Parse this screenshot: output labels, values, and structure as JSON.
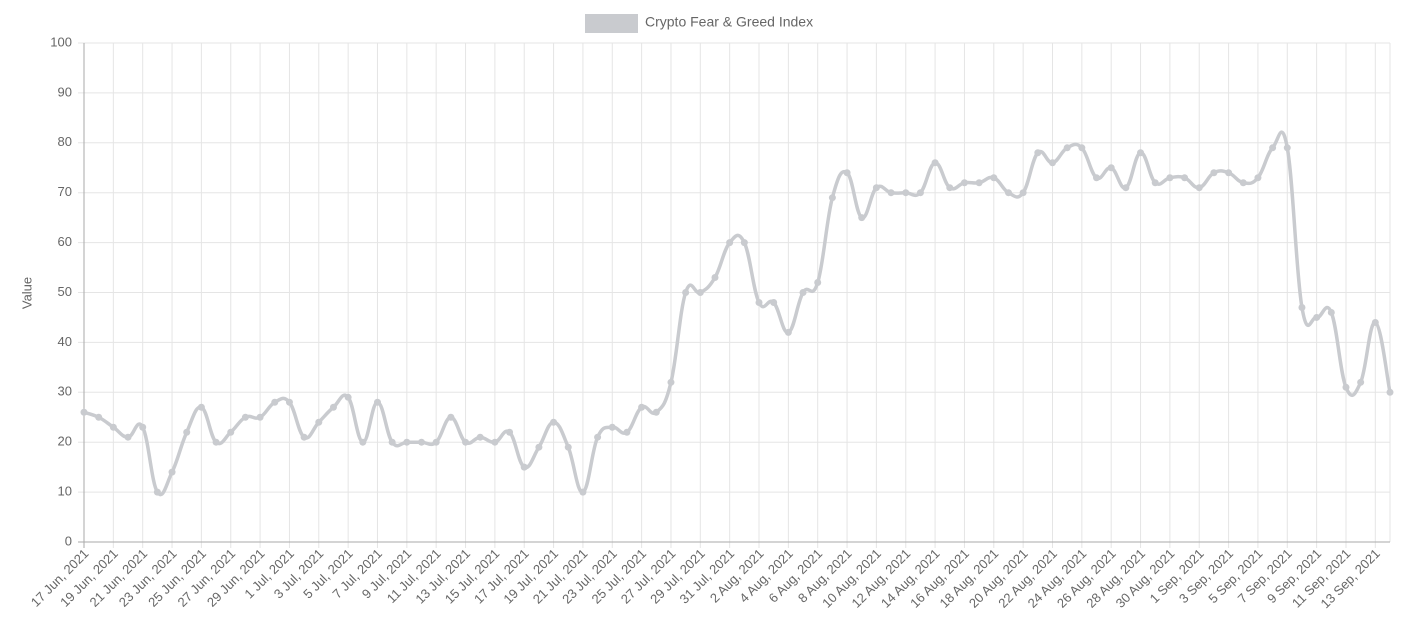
{
  "chart_data": {
    "type": "line",
    "series": [
      {
        "name": "Crypto Fear & Greed Index",
        "color": "#c9cbcf",
        "values": [
          26,
          25,
          23,
          21,
          23,
          10,
          14,
          22,
          27,
          20,
          22,
          25,
          25,
          28,
          28,
          21,
          24,
          27,
          29,
          20,
          28,
          20,
          20,
          20,
          20,
          25,
          20,
          21,
          20,
          22,
          15,
          19,
          24,
          19,
          10,
          21,
          23,
          22,
          27,
          26,
          32,
          50,
          50,
          53,
          60,
          60,
          48,
          48,
          42,
          50,
          52,
          69,
          74,
          65,
          71,
          70,
          70,
          70,
          76,
          71,
          72,
          72,
          73,
          70,
          70,
          78,
          76,
          79,
          79,
          73,
          75,
          71,
          78,
          72,
          73,
          73,
          71,
          74,
          74,
          72,
          73,
          79,
          79,
          47,
          45,
          46,
          31,
          32,
          44,
          30
        ]
      }
    ],
    "categories": [
      "17 Jun, 2021",
      null,
      "19 Jun, 2021",
      null,
      "21 Jun, 2021",
      null,
      "23 Jun, 2021",
      null,
      "25 Jun, 2021",
      null,
      "27 Jun, 2021",
      null,
      "29 Jun, 2021",
      null,
      "1 Jul, 2021",
      null,
      "3 Jul, 2021",
      null,
      "5 Jul, 2021",
      null,
      "7 Jul, 2021",
      null,
      "9 Jul, 2021",
      null,
      "11 Jul, 2021",
      null,
      "13 Jul, 2021",
      null,
      "15 Jul, 2021",
      null,
      "17 Jul, 2021",
      null,
      "19 Jul, 2021",
      null,
      "21 Jul, 2021",
      null,
      "23 Jul, 2021",
      null,
      "25 Jul, 2021",
      null,
      "27 Jul, 2021",
      null,
      "29 Jul, 2021",
      null,
      "31 Jul, 2021",
      null,
      "2 Aug, 2021",
      null,
      "4 Aug, 2021",
      null,
      "6 Aug, 2021",
      null,
      "8 Aug, 2021",
      null,
      "10 Aug, 2021",
      null,
      "12 Aug, 2021",
      null,
      "14 Aug, 2021",
      null,
      "16 Aug, 2021",
      null,
      "18 Aug, 2021",
      null,
      "20 Aug, 2021",
      null,
      "22 Aug, 2021",
      null,
      "24 Aug, 2021",
      null,
      "26 Aug, 2021",
      null,
      "28 Aug, 2021",
      null,
      "30 Aug, 2021",
      null,
      "1 Sep, 2021",
      null,
      "3 Sep, 2021",
      null,
      "5 Sep, 2021",
      null,
      "7 Sep, 2021",
      null,
      "9 Sep, 2021",
      null,
      "11 Sep, 2021",
      null,
      "13 Sep, 2021",
      null
    ],
    "y_label": "Value",
    "ylim": [
      0,
      100
    ],
    "yticks": [
      0,
      10,
      20,
      30,
      40,
      50,
      60,
      70,
      80,
      90,
      100
    ],
    "grid": true,
    "legend": "top"
  }
}
